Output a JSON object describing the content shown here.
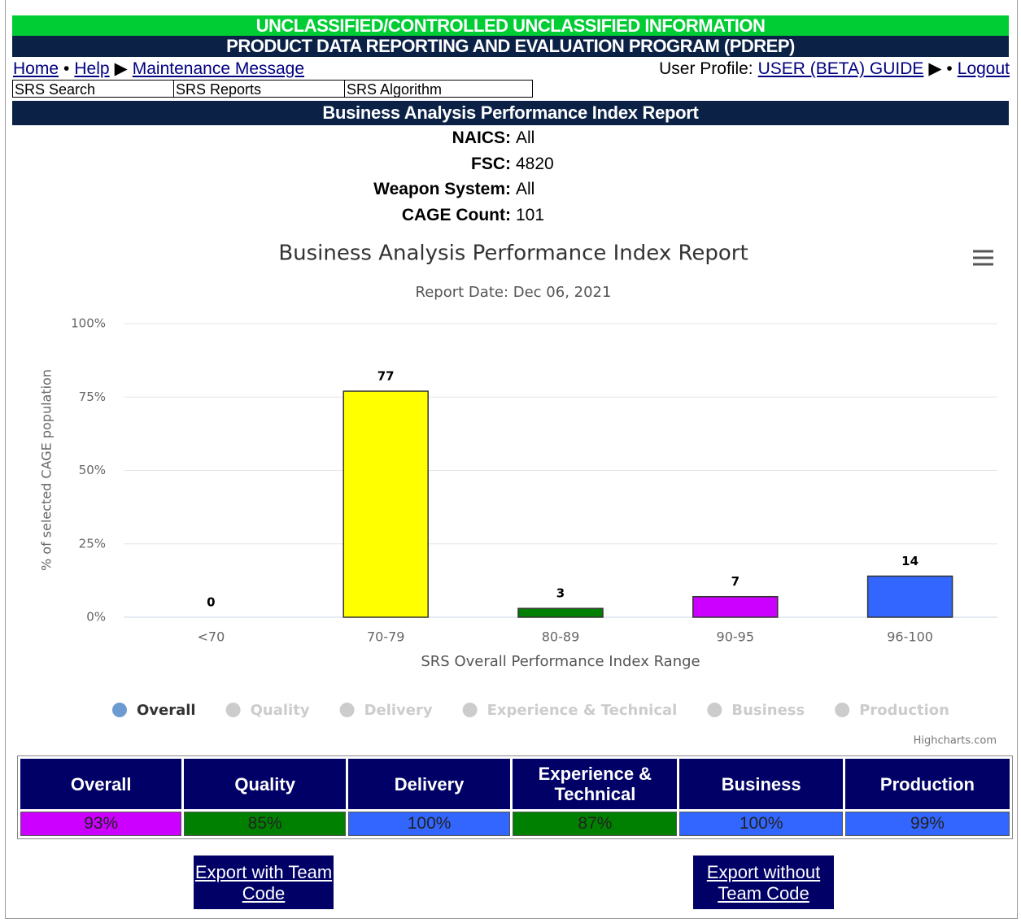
{
  "banner": {
    "classification": "UNCLASSIFIED/CONTROLLED UNCLASSIFIED INFORMATION",
    "program": "PRODUCT DATA REPORTING AND EVALUATION PROGRAM (PDREP)"
  },
  "nav": {
    "left": [
      {
        "text": "Home",
        "link": true
      },
      {
        "text": "•",
        "link": false
      },
      {
        "text": "Help",
        "link": true
      },
      {
        "text": "▶",
        "link": false
      },
      {
        "text": "Maintenance Message",
        "link": true
      }
    ],
    "right": [
      {
        "text": "User Profile:",
        "link": false
      },
      {
        "text": "USER (BETA) GUIDE",
        "link": true
      },
      {
        "text": "▶ •",
        "link": false
      },
      {
        "text": "Logout",
        "link": true
      }
    ]
  },
  "tabs": [
    "SRS Search",
    "SRS Reports",
    "SRS Algorithm"
  ],
  "report_header": "Business Analysis Performance Index Report",
  "info": [
    {
      "label": "NAICS:",
      "value": "All"
    },
    {
      "label": "FSC:",
      "value": "4820"
    },
    {
      "label": "Weapon System:",
      "value": "All"
    },
    {
      "label": "CAGE Count:",
      "value": "101"
    }
  ],
  "chart_data": {
    "type": "bar",
    "title": "Business Analysis Performance Index Report",
    "subtitle": "Report Date: Dec 06, 2021",
    "y_label": "% of selected CAGE population",
    "x_label": "SRS Overall Performance Index Range",
    "categories": [
      "<70",
      "70-79",
      "80-89",
      "90-95",
      "96-100"
    ],
    "ylim": [
      0,
      100
    ],
    "yticks": [
      {
        "value": 0,
        "label": "0%"
      },
      {
        "value": 25,
        "label": "25%"
      },
      {
        "value": 50,
        "label": "50%"
      },
      {
        "value": 75,
        "label": "75%"
      },
      {
        "value": 100,
        "label": "100%"
      }
    ],
    "grid": true,
    "legend": "bottom",
    "series": [
      {
        "name": "Overall",
        "visible": true,
        "color": "#6c9bd2",
        "point_colors": [
          "#ff0000",
          "#ffff00",
          "#008000",
          "#cc00ff",
          "#3366ff"
        ],
        "values": [
          0,
          77,
          3,
          7,
          14
        ]
      },
      {
        "name": "Quality",
        "visible": false
      },
      {
        "name": "Delivery",
        "visible": false
      },
      {
        "name": "Experience & Technical",
        "visible": false
      },
      {
        "name": "Business",
        "visible": false
      },
      {
        "name": "Production",
        "visible": false
      }
    ],
    "credits": "Highcharts.com"
  },
  "table": {
    "header": [
      "Overall",
      "Quality",
      "Delivery",
      "Experience & Technical",
      "Business",
      "Production"
    ],
    "row": [
      "93%",
      "85%",
      "100%",
      "87%",
      "100%",
      "99%"
    ],
    "colors": [
      "#cc00ff",
      "#008000",
      "#3366ff",
      "#008000",
      "#3366ff",
      "#3366ff"
    ]
  },
  "buttons": [
    "Export with Team Code",
    "Export without Team Code"
  ]
}
